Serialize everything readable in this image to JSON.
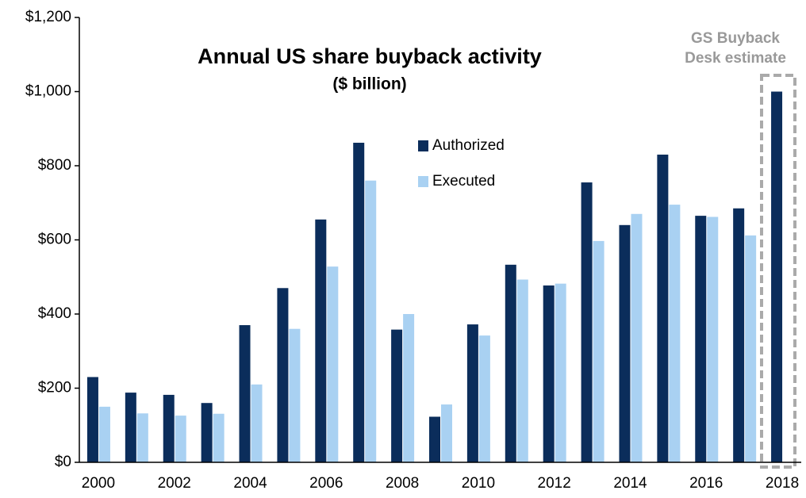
{
  "chart_data": {
    "type": "bar",
    "title": "Annual US share buyback activity",
    "subtitle": "($ billion)",
    "annotation": [
      "GS Buyback",
      "Desk estimate"
    ],
    "categories": [
      "2000",
      null,
      "2002",
      null,
      "2004",
      null,
      "2006",
      null,
      "2008",
      null,
      "2010",
      null,
      "2012",
      null,
      "2014",
      null,
      "2016",
      null,
      "2018"
    ],
    "series": [
      {
        "name": "Authorized",
        "color": "#0b2d5b",
        "values": [
          230,
          188,
          182,
          160,
          370,
          470,
          655,
          862,
          358,
          123,
          372,
          533,
          477,
          755,
          640,
          830,
          665,
          685,
          1000
        ]
      },
      {
        "name": "Executed",
        "color": "#a9d1f2",
        "values": [
          150,
          132,
          126,
          131,
          210,
          360,
          528,
          760,
          400,
          156,
          342,
          493,
          482,
          597,
          670,
          695,
          662,
          612,
          null
        ]
      }
    ],
    "ylim": [
      0,
      1200
    ],
    "yticks": [
      {
        "value": 0,
        "label": "$0"
      },
      {
        "value": 200,
        "label": "$200"
      },
      {
        "value": 400,
        "label": "$400"
      },
      {
        "value": 600,
        "label": "$600"
      },
      {
        "value": 800,
        "label": "$800"
      },
      {
        "value": 1000,
        "label": "$1,000"
      },
      {
        "value": 1200,
        "label": "$1,200"
      }
    ],
    "grid": false
  }
}
